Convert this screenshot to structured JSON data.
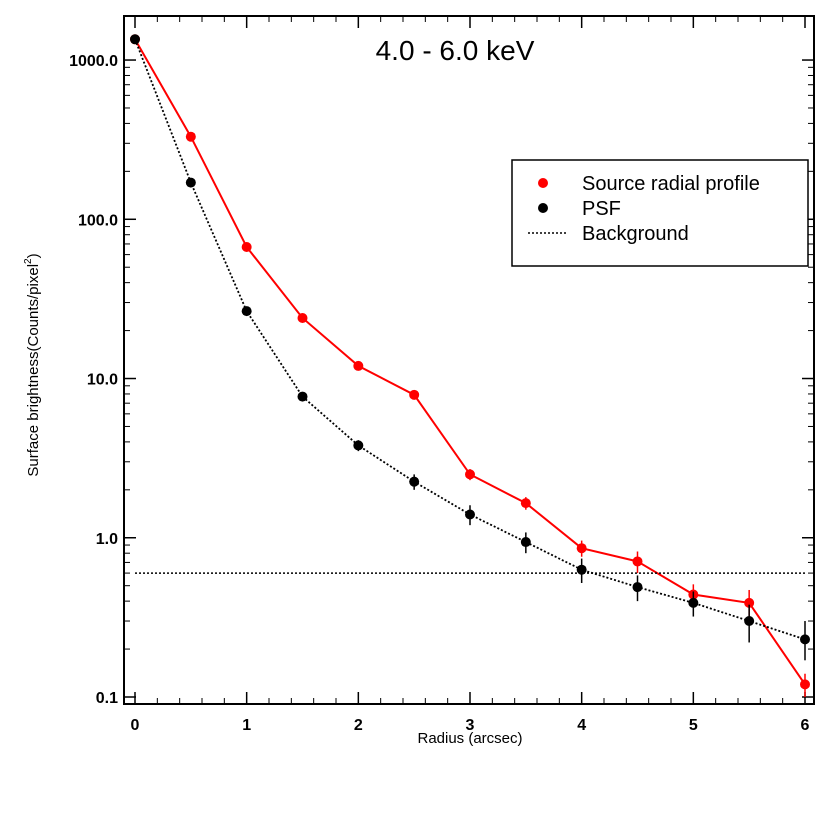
{
  "chart_data": {
    "type": "line",
    "title": "4.0 - 6.0 keV",
    "xlabel": "Radius (arcsec)",
    "ylabel_main": "Surface brightness(Counts/pixel",
    "ylabel_sup": "2",
    "ylabel_close": ")",
    "xlim": [
      0,
      6
    ],
    "ylim": [
      0.1,
      1500
    ],
    "yscale": "log",
    "x_ticks": [
      0,
      1,
      2,
      3,
      4,
      5,
      6
    ],
    "x_tick_labels": [
      "0",
      "1",
      "2",
      "3",
      "4",
      "5",
      "6"
    ],
    "y_ticks": [
      0.1,
      1,
      10,
      100,
      1000
    ],
    "y_tick_labels": [
      "0.1",
      "1.0",
      "10.0",
      "100.0",
      "1000.0"
    ],
    "legend_position": "top-right",
    "series": [
      {
        "name": "Source radial profile",
        "color": "#ff0000",
        "line": "solid",
        "x": [
          0,
          0.5,
          1.0,
          1.5,
          2.0,
          2.5,
          3.0,
          3.5,
          4.0,
          4.5,
          5.0,
          5.5,
          6.0
        ],
        "y": [
          1350,
          330,
          67,
          24,
          12,
          7.9,
          2.5,
          1.65,
          0.86,
          0.71,
          0.44,
          0.39,
          0.12
        ],
        "y_lo": [
          1350,
          330,
          67,
          24,
          12,
          7.9,
          2.3,
          1.5,
          0.76,
          0.6,
          0.37,
          0.31,
          0.1
        ],
        "y_hi": [
          1350,
          330,
          67,
          24,
          12,
          7.9,
          2.7,
          1.8,
          0.96,
          0.82,
          0.51,
          0.47,
          0.14
        ]
      },
      {
        "name": "PSF",
        "color": "#000000",
        "line": "dotted",
        "x": [
          0,
          0.5,
          1.0,
          1.5,
          2.0,
          2.5,
          3.0,
          3.5,
          4.0,
          4.5,
          5.0,
          5.5,
          6.0
        ],
        "y": [
          1350,
          170,
          26.5,
          7.7,
          3.8,
          2.25,
          1.4,
          0.94,
          0.63,
          0.49,
          0.39,
          0.3,
          0.23
        ],
        "y_lo": [
          1350,
          170,
          26.5,
          7.7,
          3.5,
          2.0,
          1.2,
          0.8,
          0.52,
          0.4,
          0.32,
          0.22,
          0.17
        ],
        "y_hi": [
          1350,
          170,
          26.5,
          7.7,
          4.1,
          2.5,
          1.6,
          1.08,
          0.74,
          0.58,
          0.46,
          0.38,
          0.3
        ]
      },
      {
        "name": "Background",
        "color": "#000000",
        "line": "dotted",
        "constant_y": 0.6
      }
    ]
  }
}
